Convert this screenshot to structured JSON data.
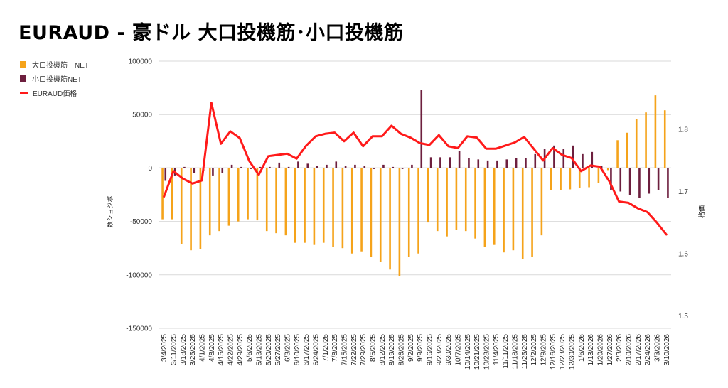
{
  "title": "EURAUD - 豪ドル 大口投機筋･小口投機筋",
  "chart_data": {
    "type": "bar+line",
    "title": "EURAUD - 豪ドル 大口投機筋･小口投機筋",
    "ylabel": "数ショジボ",
    "y2label": "格価",
    "ylim": [
      -150000,
      100000
    ],
    "y_ticks": [
      100000,
      50000,
      0,
      -50000,
      -100000,
      -150000
    ],
    "y_tick_labels": [
      "100000",
      "50000",
      "0",
      "-50000",
      "-100000",
      "-150000"
    ],
    "y2lim": [
      1.48,
      1.91
    ],
    "y2_ticks": [
      1.8,
      1.7,
      1.6,
      1.5
    ],
    "y2_tick_labels": [
      "1.8",
      "1.7",
      "1.6",
      "1.5"
    ],
    "grid": true,
    "legend_position": "left",
    "x": [
      "3/4/2025",
      "3/11/2025",
      "3/18/2025",
      "3/25/2025",
      "4/1/2025",
      "4/8/2025",
      "4/15/2025",
      "4/22/2025",
      "4/29/2025",
      "5/6/2025",
      "5/13/2025",
      "5/20/2025",
      "5/27/2025",
      "6/3/2025",
      "6/10/2025",
      "6/17/2025",
      "6/24/2025",
      "7/1/2025",
      "7/8/2025",
      "7/15/2025",
      "7/22/2025",
      "7/29/2025",
      "8/5/2025",
      "8/12/2025",
      "8/19/2025",
      "8/26/2025",
      "9/2/2025",
      "9/9/2025",
      "9/16/2025",
      "9/23/2025",
      "9/30/2025",
      "10/7/2025",
      "10/14/2025",
      "10/21/2025",
      "10/28/2025",
      "11/4/2025",
      "11/11/2025",
      "11/18/2025",
      "11/25/2025",
      "12/2/2025",
      "12/9/2025",
      "12/16/2025",
      "12/23/2025",
      "12/30/2025",
      "1/6/2026",
      "1/13/2026",
      "1/20/2026",
      "1/27/2026",
      "2/3/2026",
      "2/10/2026",
      "2/17/2026",
      "2/24/2026",
      "3/3/2026",
      "3/10/2026"
    ],
    "x_tick_labels": [
      "3/4/2025",
      "3/11/2025",
      "3/18/2025",
      "3/25/2025",
      "4/1/2025",
      "4/8/2025",
      "4/15/2025",
      "4/22/2025",
      "4/29/2025",
      "5/6/2025",
      "5/13/2025",
      "5/20/2025",
      "5/27/2025",
      "6/3/2025",
      "6/10/2025",
      "6/17/2025",
      "6/24/2025",
      "7/1/2025",
      "7/8/2025",
      "7/15/2025",
      "7/22/2025",
      "7/29/2025",
      "8/5/2025",
      "8/12/2025",
      "8/19/2025",
      "8/26/2025",
      "9/2/2025",
      "9/9/2025",
      "9/16/2025",
      "9/23/2025",
      "9/30/2025",
      "10/7/2025",
      "10/14/2025",
      "10/21/2025",
      "10/28/2025",
      "11/4/2025",
      "11/11/2025",
      "11/18/2025",
      "11/25/2025",
      "12/2/2025",
      "12/9/2025",
      "12/16/2025",
      "12/23/2025",
      "12/30/2025",
      "1/6/2026",
      "1/13/2026",
      "1/20/2026",
      "1/27/2026",
      "2/3/2026",
      "2/10/2026",
      "2/17/2026",
      "2/24/2026",
      "3/3/2026",
      "3/10/2026"
    ],
    "series": [
      {
        "name": "大口投機筋　NET",
        "type": "bar",
        "axis": "left",
        "color": "#f5a31a",
        "values": [
          -48000,
          -48000,
          -71000,
          -77000,
          -76000,
          -63000,
          -59000,
          -54000,
          -50000,
          -48000,
          -49000,
          -59000,
          -61000,
          -63000,
          -70000,
          -70000,
          -72000,
          -70000,
          -74000,
          -75000,
          -80000,
          -78000,
          -83000,
          -88000,
          -95000,
          -101000,
          -83000,
          -80000,
          -51000,
          -59000,
          -64000,
          -58000,
          -59000,
          -66000,
          -74000,
          -72000,
          -79000,
          -77000,
          -85000,
          -83000,
          -63000,
          -21000,
          -21000,
          -20000,
          -19000,
          -18000,
          -14000,
          -2000,
          26000,
          33000,
          46000,
          52000,
          68000,
          54000
        ]
      },
      {
        "name": "小口投機筋NET",
        "type": "bar",
        "axis": "left",
        "color": "#6d1f3e",
        "values": [
          -12000,
          -7000,
          1000,
          -5000,
          -3000,
          -7000,
          -5000,
          3000,
          1000,
          -1000,
          1000,
          1000,
          5000,
          1000,
          6000,
          4000,
          2000,
          3000,
          6000,
          2000,
          3000,
          2000,
          -1000,
          3000,
          1000,
          -1000,
          3000,
          73000,
          10000,
          10000,
          10000,
          16000,
          9000,
          8000,
          7000,
          7000,
          8000,
          9000,
          9000,
          13000,
          18000,
          21000,
          18000,
          21000,
          13000,
          15000,
          2000,
          -21000,
          -22000,
          -25000,
          -28000,
          -24000,
          -21000,
          -28000
        ]
      },
      {
        "name": "EURAUD価格",
        "type": "line",
        "axis": "right",
        "color": "#ff1a1a",
        "values": [
          1.692,
          1.733,
          1.721,
          1.713,
          1.718,
          1.843,
          1.777,
          1.797,
          1.786,
          1.749,
          1.727,
          1.757,
          1.759,
          1.761,
          1.753,
          1.774,
          1.789,
          1.793,
          1.795,
          1.781,
          1.795,
          1.773,
          1.789,
          1.789,
          1.806,
          1.793,
          1.787,
          1.778,
          1.775,
          1.791,
          1.773,
          1.77,
          1.789,
          1.787,
          1.769,
          1.769,
          1.774,
          1.779,
          1.788,
          1.769,
          1.75,
          1.77,
          1.759,
          1.754,
          1.733,
          1.742,
          1.74,
          1.716,
          1.684,
          1.682,
          1.673,
          1.667,
          1.65,
          1.631
        ]
      }
    ]
  }
}
